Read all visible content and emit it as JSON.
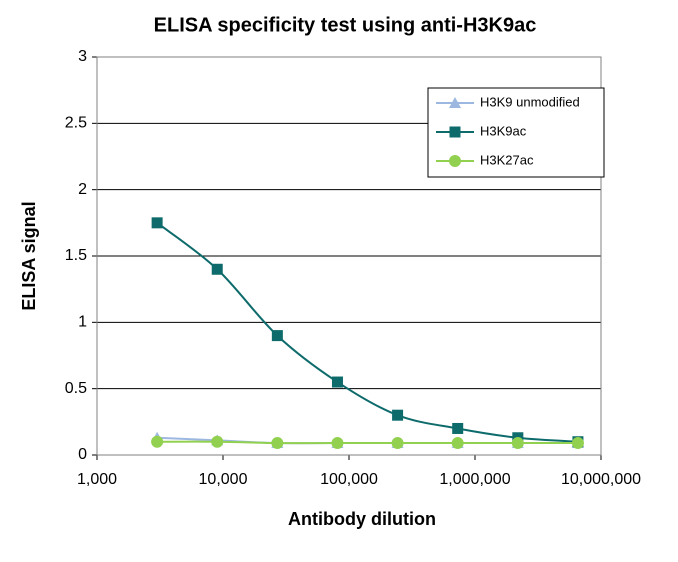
{
  "chart_data": {
    "type": "line",
    "title": "ELISA specificity test using anti-H3K9ac",
    "x_label": "Antibody  dilution",
    "y_label": "ELISA signal",
    "x": [
      3000,
      9000,
      27000,
      81000,
      243000,
      729000,
      2187000,
      6561000
    ],
    "x_scale": "log",
    "xlim": [
      1000,
      10000000
    ],
    "xticks": [
      {
        "value": 1000,
        "label": "1,000"
      },
      {
        "value": 10000,
        "label": "10,000"
      },
      {
        "value": 100000,
        "label": "100,000"
      },
      {
        "value": 1000000,
        "label": "1,000,000"
      },
      {
        "value": 10000000,
        "label": "10,000,000"
      }
    ],
    "ylim": [
      0,
      3
    ],
    "yticks": [
      0,
      0.5,
      1,
      1.5,
      2,
      2.5,
      3
    ],
    "grid": true,
    "legend": "upper right",
    "smooth": true,
    "series": [
      {
        "name": "H3K9 unmodified",
        "color": "#9db8e0",
        "marker": "triangle",
        "values": [
          0.13,
          0.11,
          0.09,
          0.09,
          0.09,
          0.09,
          0.09,
          0.09
        ]
      },
      {
        "name": "H3K9ac",
        "color": "#0e6b6b",
        "marker": "square",
        "values": [
          1.75,
          1.4,
          0.9,
          0.55,
          0.3,
          0.2,
          0.13,
          0.1
        ]
      },
      {
        "name": "H3K27ac",
        "color": "#92d050",
        "marker": "circle",
        "values": [
          0.1,
          0.1,
          0.09,
          0.09,
          0.09,
          0.09,
          0.09,
          0.09
        ]
      }
    ]
  }
}
